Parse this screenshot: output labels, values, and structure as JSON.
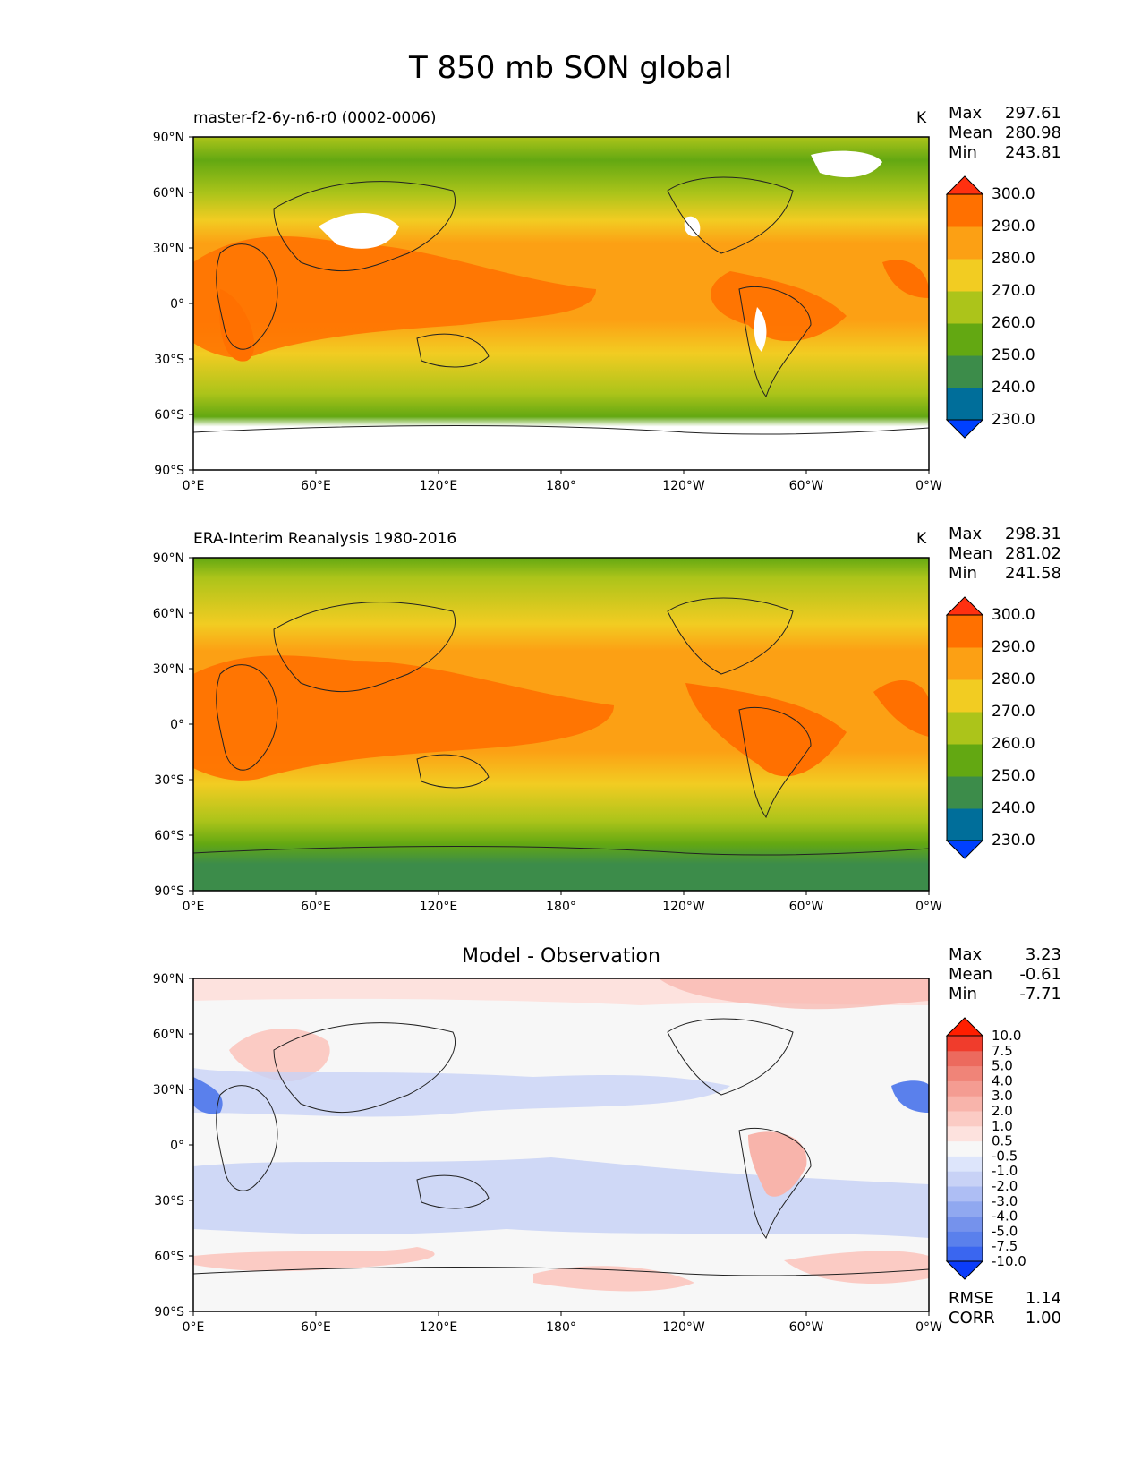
{
  "figure_title": "T 850 mb SON global",
  "panels": [
    {
      "id": "model",
      "title": "master-f2-6y-n6-r0 (0002-0006)",
      "title_style": "left",
      "units": "K",
      "stats": {
        "max_label": "Max",
        "max": "297.61",
        "mean_label": "Mean",
        "mean": "280.98",
        "min_label": "Min",
        "min": "243.81"
      },
      "colorbar": {
        "colors": [
          "#0040ff",
          "#006e9a",
          "#3c8c4a",
          "#63a812",
          "#acc41a",
          "#f2cc22",
          "#fca014",
          "#ff7000",
          "#ff3010"
        ],
        "ticks": [
          "230.0",
          "240.0",
          "250.0",
          "260.0",
          "270.0",
          "280.0",
          "290.0",
          "300.0"
        ]
      },
      "missing_color": "#ffffff"
    },
    {
      "id": "obs",
      "title": "ERA-Interim Reanalysis 1980-2016",
      "title_style": "left",
      "units": "K",
      "stats": {
        "max_label": "Max",
        "max": "298.31",
        "mean_label": "Mean",
        "mean": "281.02",
        "min_label": "Min",
        "min": "241.58"
      },
      "colorbar": {
        "colors": [
          "#0040ff",
          "#006e9a",
          "#3c8c4a",
          "#63a812",
          "#acc41a",
          "#f2cc22",
          "#fca014",
          "#ff7000",
          "#ff3010"
        ],
        "ticks": [
          "230.0",
          "240.0",
          "250.0",
          "260.0",
          "270.0",
          "280.0",
          "290.0",
          "300.0"
        ]
      }
    },
    {
      "id": "diff",
      "title": "Model - Observation",
      "title_style": "center",
      "units": "",
      "stats": {
        "max_label": "Max",
        "max": "3.23",
        "mean_label": "Mean",
        "mean": "-0.61",
        "min_label": "Min",
        "min": "-7.71"
      },
      "colorbar": {
        "colors": [
          "#0b3cfa",
          "#3a66f0",
          "#5a80ec",
          "#7592ec",
          "#90a8f0",
          "#aebef4",
          "#c8d2f6",
          "#dde5fb",
          "#f7f7f7",
          "#fde2de",
          "#fbcbc4",
          "#f8b4ab",
          "#f49c92",
          "#f08478",
          "#ec6a5e",
          "#f03c2c",
          "#ff1e00"
        ],
        "ticks": [
          "-10.0",
          "-7.5",
          "-5.0",
          "-4.0",
          "-3.0",
          "-2.0",
          "-1.0",
          "-0.5",
          "0.5",
          "1.0",
          "2.0",
          "3.0",
          "4.0",
          "5.0",
          "7.5",
          "10.0"
        ]
      },
      "bottom_stats": {
        "rmse_label": "RMSE",
        "rmse": "1.14",
        "corr_label": "CORR",
        "corr": "1.00"
      }
    }
  ],
  "axes": {
    "x_ticks": [
      "0°E",
      "60°E",
      "120°E",
      "180°",
      "120°W",
      "60°W",
      "0°W"
    ],
    "y_ticks": [
      "90°N",
      "60°N",
      "30°N",
      "0°",
      "30°S",
      "60°S",
      "90°S"
    ]
  }
}
